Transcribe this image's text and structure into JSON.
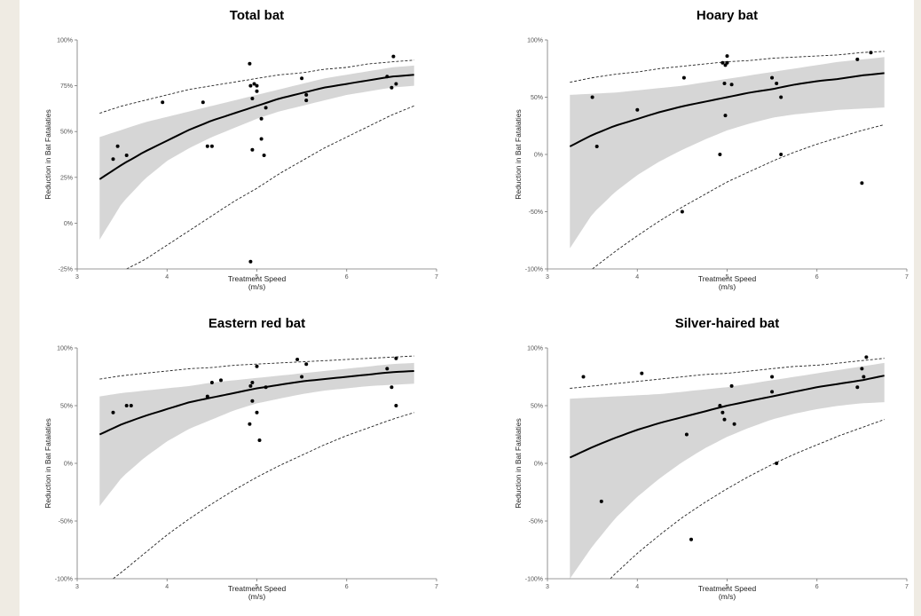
{
  "figure": {
    "charts_note": "",
    "shared": {
      "xlabel": "Treatment Speed",
      "xunit": "(m/s)",
      "ylabel": "Reduction in Bat Fatalaties",
      "xticks": [
        "3",
        "4",
        "5",
        "6",
        "7"
      ],
      "xlim": [
        3,
        7
      ]
    }
  },
  "chart_data": [
    {
      "type": "scatter",
      "title": "Total bat",
      "xlabel": "Treatment Speed (m/s)",
      "ylabel": "Reduction in Bat Fatalaties",
      "xlim": [
        3,
        7
      ],
      "ylim": [
        -25,
        100
      ],
      "yticks": [
        "-25%",
        "0%",
        "25%",
        "50%",
        "75%",
        "100%"
      ],
      "ytick_values": [
        -25,
        0,
        25,
        50,
        75,
        100
      ],
      "points": [
        [
          3.4,
          35
        ],
        [
          3.45,
          42
        ],
        [
          3.55,
          37
        ],
        [
          3.95,
          66
        ],
        [
          4.4,
          66
        ],
        [
          4.45,
          42
        ],
        [
          4.5,
          42
        ],
        [
          4.92,
          87
        ],
        [
          4.93,
          75
        ],
        [
          4.95,
          68
        ],
        [
          4.95,
          40
        ],
        [
          4.97,
          76
        ],
        [
          5.0,
          72
        ],
        [
          5.0,
          75
        ],
        [
          5.05,
          57
        ],
        [
          5.05,
          46
        ],
        [
          5.08,
          37
        ],
        [
          5.1,
          63
        ],
        [
          5.5,
          79
        ],
        [
          5.55,
          70
        ],
        [
          5.55,
          67
        ],
        [
          4.93,
          -21
        ],
        [
          6.45,
          80
        ],
        [
          6.5,
          74
        ],
        [
          6.52,
          91
        ],
        [
          6.55,
          76
        ]
      ],
      "fit": {
        "x": [
          3.25,
          3.5,
          3.75,
          4,
          4.25,
          4.5,
          4.75,
          5,
          5.25,
          5.5,
          5.75,
          6,
          6.25,
          6.5,
          6.75
        ],
        "y": [
          24,
          32,
          39,
          45,
          51,
          56,
          60,
          64,
          68,
          71,
          74,
          76,
          78,
          80,
          81
        ]
      },
      "ci_upper": {
        "x": [
          3.25,
          3.5,
          3.75,
          4,
          4.25,
          4.5,
          4.75,
          5,
          5.25,
          5.5,
          5.75,
          6,
          6.25,
          6.5,
          6.75
        ],
        "y": [
          47,
          51,
          55,
          58,
          61,
          64,
          67,
          70,
          73,
          76,
          79,
          81,
          83,
          85,
          86
        ]
      },
      "ci_lower": {
        "x": [
          3.25,
          3.5,
          3.75,
          4,
          4.25,
          4.5,
          4.75,
          5,
          5.25,
          5.5,
          5.75,
          6,
          6.25,
          6.5,
          6.75
        ],
        "y": [
          -9,
          11,
          24,
          34,
          41,
          47,
          52,
          57,
          61,
          64,
          67,
          70,
          72,
          74,
          75
        ]
      },
      "pi_upper": {
        "x": [
          3.25,
          3.5,
          3.75,
          4,
          4.25,
          4.5,
          4.75,
          5,
          5.25,
          5.5,
          5.75,
          6,
          6.25,
          6.5,
          6.75
        ],
        "y": [
          60,
          64,
          67,
          70,
          73,
          75,
          77,
          79,
          81,
          82,
          84,
          85,
          87,
          88,
          89
        ]
      },
      "pi_lower": {
        "x": [
          3.55,
          3.75,
          4,
          4.25,
          4.5,
          4.75,
          5,
          5.25,
          5.5,
          5.75,
          6,
          6.25,
          6.5,
          6.75
        ],
        "y": [
          -25,
          -20,
          -12,
          -4,
          4,
          12,
          19,
          27,
          34,
          41,
          47,
          53,
          59,
          64
        ]
      }
    },
    {
      "type": "scatter",
      "title": "Hoary bat",
      "xlabel": "Treatment Speed (m/s)",
      "ylabel": "Reduction in Bat Fatalaties",
      "xlim": [
        3,
        7
      ],
      "ylim": [
        -100,
        100
      ],
      "yticks": [
        "-100%",
        "-50%",
        "0%",
        "50%",
        "100%"
      ],
      "ytick_values": [
        -100,
        -50,
        0,
        50,
        100
      ],
      "points": [
        [
          3.5,
          50
        ],
        [
          3.55,
          7
        ],
        [
          4.0,
          39
        ],
        [
          4.5,
          -50
        ],
        [
          4.52,
          67
        ],
        [
          4.92,
          0
        ],
        [
          4.95,
          80
        ],
        [
          4.97,
          62
        ],
        [
          4.98,
          78
        ],
        [
          4.98,
          34
        ],
        [
          5.0,
          86
        ],
        [
          5.0,
          80
        ],
        [
          5.05,
          61
        ],
        [
          5.5,
          67
        ],
        [
          5.55,
          62
        ],
        [
          5.6,
          50
        ],
        [
          5.6,
          0
        ],
        [
          6.45,
          83
        ],
        [
          6.5,
          -25
        ],
        [
          6.6,
          89
        ]
      ],
      "fit": {
        "x": [
          3.25,
          3.5,
          3.75,
          4,
          4.25,
          4.5,
          4.75,
          5,
          5.25,
          5.5,
          5.75,
          6,
          6.25,
          6.5,
          6.75
        ],
        "y": [
          7,
          17,
          25,
          31,
          37,
          42,
          46,
          50,
          54,
          57,
          61,
          64,
          66,
          69,
          71
        ]
      },
      "ci_upper": {
        "x": [
          3.25,
          3.5,
          3.75,
          4,
          4.25,
          4.5,
          4.75,
          5,
          5.25,
          5.5,
          5.75,
          6,
          6.25,
          6.5,
          6.75
        ],
        "y": [
          52,
          53,
          54,
          56,
          58,
          60,
          63,
          66,
          69,
          72,
          75,
          78,
          81,
          83,
          85
        ]
      },
      "ci_lower": {
        "x": [
          3.25,
          3.5,
          3.75,
          4,
          4.25,
          4.5,
          4.75,
          5,
          5.25,
          5.5,
          5.75,
          6,
          6.25,
          6.5,
          6.75
        ],
        "y": [
          -82,
          -52,
          -33,
          -18,
          -6,
          4,
          13,
          21,
          27,
          32,
          35,
          37,
          39,
          40,
          41
        ]
      },
      "pi_upper": {
        "x": [
          3.25,
          3.5,
          3.75,
          4,
          4.25,
          4.5,
          4.75,
          5,
          5.25,
          5.5,
          5.75,
          6,
          6.25,
          6.5,
          6.75
        ],
        "y": [
          63,
          67,
          70,
          72,
          75,
          77,
          79,
          81,
          82,
          84,
          85,
          86,
          87,
          89,
          90
        ]
      },
      "pi_lower": {
        "x": [
          3.5,
          3.75,
          4,
          4.25,
          4.5,
          4.75,
          5,
          5.25,
          5.5,
          5.75,
          6,
          6.25,
          6.5,
          6.75
        ],
        "y": [
          -100,
          -85,
          -71,
          -58,
          -46,
          -35,
          -24,
          -15,
          -6,
          2,
          9,
          15,
          21,
          26
        ]
      }
    },
    {
      "type": "scatter",
      "title": "Eastern red bat",
      "xlabel": "Treatment Speed (m/s)",
      "ylabel": "Reduction in Bat Fatalaties",
      "xlim": [
        3,
        7
      ],
      "ylim": [
        -100,
        100
      ],
      "yticks": [
        "-100%",
        "-50%",
        "0%",
        "50%",
        "100%"
      ],
      "ytick_values": [
        -100,
        -50,
        0,
        50,
        100
      ],
      "points": [
        [
          3.4,
          44
        ],
        [
          3.55,
          50
        ],
        [
          3.6,
          50
        ],
        [
          4.45,
          58
        ],
        [
          4.5,
          70
        ],
        [
          4.6,
          72
        ],
        [
          4.92,
          34
        ],
        [
          4.93,
          67
        ],
        [
          4.95,
          54
        ],
        [
          4.95,
          70
        ],
        [
          5.0,
          44
        ],
        [
          5.0,
          84
        ],
        [
          5.03,
          20
        ],
        [
          5.1,
          66
        ],
        [
          5.45,
          90
        ],
        [
          5.5,
          75
        ],
        [
          5.55,
          86
        ],
        [
          6.45,
          82
        ],
        [
          6.5,
          66
        ],
        [
          6.55,
          91
        ],
        [
          6.55,
          50
        ]
      ],
      "fit": {
        "x": [
          3.25,
          3.5,
          3.75,
          4,
          4.25,
          4.5,
          4.75,
          5,
          5.25,
          5.5,
          5.75,
          6,
          6.25,
          6.5,
          6.75
        ],
        "y": [
          25,
          34,
          41,
          47,
          53,
          57,
          61,
          65,
          68,
          71,
          73,
          75,
          77,
          79,
          80
        ]
      },
      "ci_upper": {
        "x": [
          3.25,
          3.5,
          3.75,
          4,
          4.25,
          4.5,
          4.75,
          5,
          5.25,
          5.5,
          5.75,
          6,
          6.25,
          6.5,
          6.75
        ],
        "y": [
          58,
          61,
          63,
          65,
          67,
          70,
          72,
          74,
          76,
          78,
          80,
          82,
          84,
          86,
          87
        ]
      },
      "ci_lower": {
        "x": [
          3.25,
          3.5,
          3.75,
          4,
          4.25,
          4.5,
          4.75,
          5,
          5.25,
          5.5,
          5.75,
          6,
          6.25,
          6.5,
          6.75
        ],
        "y": [
          -37,
          -12,
          5,
          19,
          30,
          38,
          46,
          52,
          56,
          60,
          63,
          65,
          67,
          68,
          69
        ]
      },
      "pi_upper": {
        "x": [
          3.25,
          3.5,
          3.75,
          4,
          4.25,
          4.5,
          4.75,
          5,
          5.25,
          5.5,
          5.75,
          6,
          6.25,
          6.5,
          6.75
        ],
        "y": [
          73,
          76,
          78,
          80,
          82,
          83,
          85,
          86,
          87,
          88,
          89,
          90,
          91,
          92,
          93
        ]
      },
      "pi_lower": {
        "x": [
          3.4,
          3.5,
          3.75,
          4,
          4.25,
          4.5,
          4.75,
          5,
          5.25,
          5.5,
          5.75,
          6,
          6.25,
          6.5,
          6.75
        ],
        "y": [
          -100,
          -94,
          -78,
          -62,
          -48,
          -35,
          -23,
          -12,
          -2,
          7,
          16,
          24,
          31,
          38,
          44
        ]
      }
    },
    {
      "type": "scatter",
      "title": "Silver-haired bat",
      "xlabel": "Treatment Speed (m/s)",
      "ylabel": "Reduction in Bat Fatalaties",
      "xlim": [
        3,
        7
      ],
      "ylim": [
        -100,
        100
      ],
      "yticks": [
        "-100%",
        "-50%",
        "0%",
        "50%",
        "100%"
      ],
      "ytick_values": [
        -100,
        -50,
        0,
        50,
        100
      ],
      "points": [
        [
          3.4,
          75
        ],
        [
          3.6,
          -33
        ],
        [
          4.05,
          78
        ],
        [
          4.55,
          25
        ],
        [
          4.6,
          -66
        ],
        [
          4.92,
          50
        ],
        [
          4.95,
          44
        ],
        [
          4.97,
          38
        ],
        [
          5.05,
          67
        ],
        [
          5.08,
          34
        ],
        [
          5.5,
          62
        ],
        [
          5.5,
          75
        ],
        [
          5.55,
          0
        ],
        [
          6.45,
          66
        ],
        [
          6.5,
          82
        ],
        [
          6.52,
          75
        ],
        [
          6.55,
          92
        ]
      ],
      "fit": {
        "x": [
          3.25,
          3.5,
          3.75,
          4,
          4.25,
          4.5,
          4.75,
          5,
          5.25,
          5.5,
          5.75,
          6,
          6.25,
          6.5,
          6.75
        ],
        "y": [
          5,
          14,
          22,
          29,
          35,
          40,
          45,
          50,
          54,
          58,
          62,
          66,
          69,
          72,
          76
        ]
      },
      "ci_upper": {
        "x": [
          3.25,
          3.5,
          3.75,
          4,
          4.25,
          4.5,
          4.75,
          5,
          5.25,
          5.5,
          5.75,
          6,
          6.25,
          6.5,
          6.75
        ],
        "y": [
          56,
          57,
          58,
          59,
          60,
          62,
          64,
          66,
          69,
          72,
          75,
          78,
          81,
          84,
          87
        ]
      },
      "ci_lower": {
        "x": [
          3.25,
          3.5,
          3.75,
          4,
          4.25,
          4.5,
          4.75,
          5,
          5.25,
          5.5,
          5.75,
          6,
          6.25,
          6.5,
          6.75
        ],
        "y": [
          -100,
          -72,
          -48,
          -29,
          -13,
          1,
          13,
          23,
          31,
          38,
          43,
          47,
          50,
          52,
          53
        ]
      },
      "pi_upper": {
        "x": [
          3.25,
          3.5,
          3.75,
          4,
          4.25,
          4.5,
          4.75,
          5,
          5.25,
          5.5,
          5.75,
          6,
          6.25,
          6.5,
          6.75
        ],
        "y": [
          65,
          67,
          69,
          71,
          73,
          75,
          77,
          78,
          80,
          82,
          84,
          85,
          87,
          89,
          91
        ]
      },
      "pi_lower": {
        "x": [
          3.7,
          3.75,
          4,
          4.25,
          4.5,
          4.75,
          5,
          5.25,
          5.5,
          5.75,
          6,
          6.25,
          6.5,
          6.75
        ],
        "y": [
          -100,
          -96,
          -78,
          -62,
          -47,
          -34,
          -22,
          -11,
          -1,
          8,
          16,
          24,
          31,
          38
        ]
      }
    }
  ]
}
